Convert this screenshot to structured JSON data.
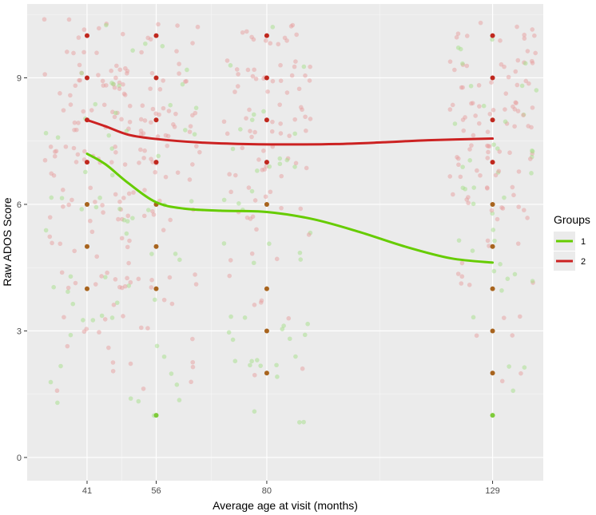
{
  "chart_data": {
    "type": "scatter",
    "title": "",
    "xlabel": "Average age at visit (months)",
    "ylabel": "Raw ADOS Score",
    "x_ticks": [
      41,
      56,
      80,
      129
    ],
    "y_ticks": [
      0,
      3,
      6,
      9
    ],
    "xlim": [
      28,
      140
    ],
    "ylim": [
      -0.55,
      10.75
    ],
    "grid": true,
    "legend": {
      "title": "Groups",
      "position": "right"
    },
    "series": [
      {
        "name": "1",
        "color": "#66cc00",
        "point_color": "#a6e08a",
        "smooth": [
          {
            "x": 41,
            "y": 7.2
          },
          {
            "x": 45,
            "y": 6.95
          },
          {
            "x": 50,
            "y": 6.5
          },
          {
            "x": 56,
            "y": 6.05
          },
          {
            "x": 62,
            "y": 5.9
          },
          {
            "x": 70,
            "y": 5.85
          },
          {
            "x": 80,
            "y": 5.82
          },
          {
            "x": 90,
            "y": 5.65
          },
          {
            "x": 100,
            "y": 5.35
          },
          {
            "x": 110,
            "y": 5.0
          },
          {
            "x": 120,
            "y": 4.72
          },
          {
            "x": 129,
            "y": 4.62
          }
        ]
      },
      {
        "name": "2",
        "color": "#cc2222",
        "point_color": "#e8a0a0",
        "smooth": [
          {
            "x": 41,
            "y": 8.0
          },
          {
            "x": 45,
            "y": 7.85
          },
          {
            "x": 50,
            "y": 7.65
          },
          {
            "x": 56,
            "y": 7.55
          },
          {
            "x": 65,
            "y": 7.47
          },
          {
            "x": 75,
            "y": 7.43
          },
          {
            "x": 85,
            "y": 7.42
          },
          {
            "x": 95,
            "y": 7.43
          },
          {
            "x": 105,
            "y": 7.47
          },
          {
            "x": 115,
            "y": 7.52
          },
          {
            "x": 129,
            "y": 7.56
          }
        ]
      }
    ],
    "visit_medians": [
      {
        "x": 41,
        "values": [
          10,
          9,
          8,
          7,
          6,
          5,
          4
        ],
        "color": "#b03a1a"
      },
      {
        "x": 56,
        "values": [
          10,
          9,
          8,
          7,
          6,
          5,
          4,
          1
        ],
        "color": "#b03a1a"
      },
      {
        "x": 80,
        "values": [
          10,
          9,
          8,
          7,
          6,
          4,
          3,
          2
        ],
        "color": "#b03a1a"
      },
      {
        "x": 129,
        "values": [
          10,
          9,
          8,
          7,
          6,
          5,
          4,
          3,
          2,
          1
        ],
        "color": "#b03a1a"
      }
    ]
  }
}
